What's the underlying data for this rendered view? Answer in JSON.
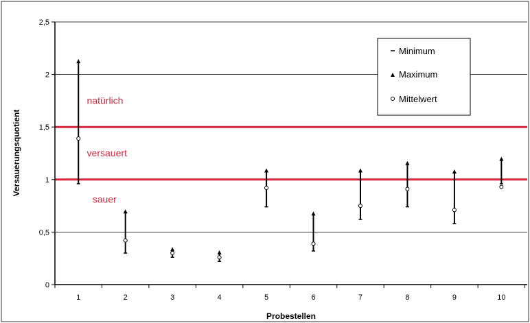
{
  "chart_data": {
    "type": "scatter",
    "title": "",
    "xlabel": "Probestellen",
    "ylabel": "Versauerungsquotient",
    "ylim": [
      0,
      2.5
    ],
    "yticks": [
      0,
      0.5,
      1,
      1.5,
      2,
      2.5
    ],
    "ytick_labels": [
      "0",
      "0,5",
      "1",
      "1,5",
      "2",
      "2,5"
    ],
    "categories": [
      "1",
      "2",
      "3",
      "4",
      "5",
      "6",
      "7",
      "8",
      "9",
      "10"
    ],
    "grid": "horizontal at major ticks",
    "legend_position": "top-right",
    "legend": {
      "minimum": "Minimum",
      "maximum": "Maximum",
      "mean": "Mittelwert"
    },
    "series": [
      {
        "name": "Minimum",
        "values": [
          0.96,
          0.3,
          0.26,
          0.22,
          0.74,
          0.32,
          0.62,
          0.74,
          0.58,
          0.96
        ]
      },
      {
        "name": "Maximum",
        "values": [
          2.14,
          0.71,
          0.35,
          0.32,
          1.1,
          0.69,
          1.1,
          1.17,
          1.09,
          1.21
        ]
      },
      {
        "name": "Mittelwert",
        "values": [
          1.39,
          0.42,
          0.3,
          0.26,
          0.92,
          0.39,
          0.75,
          0.91,
          0.71,
          0.93
        ]
      }
    ],
    "threshold_lines": [
      {
        "value": 1.5,
        "color": "#d7263d"
      },
      {
        "value": 1.0,
        "color": "#d7263d"
      }
    ],
    "annotations": [
      {
        "text": "natürlich",
        "y": 1.72,
        "x": 1.18,
        "color": "#d7263d"
      },
      {
        "text": "versauert",
        "y": 1.22,
        "x": 1.18,
        "color": "#d7263d"
      },
      {
        "text": "sauer",
        "y": 0.78,
        "x": 1.3,
        "color": "#d7263d"
      }
    ]
  }
}
